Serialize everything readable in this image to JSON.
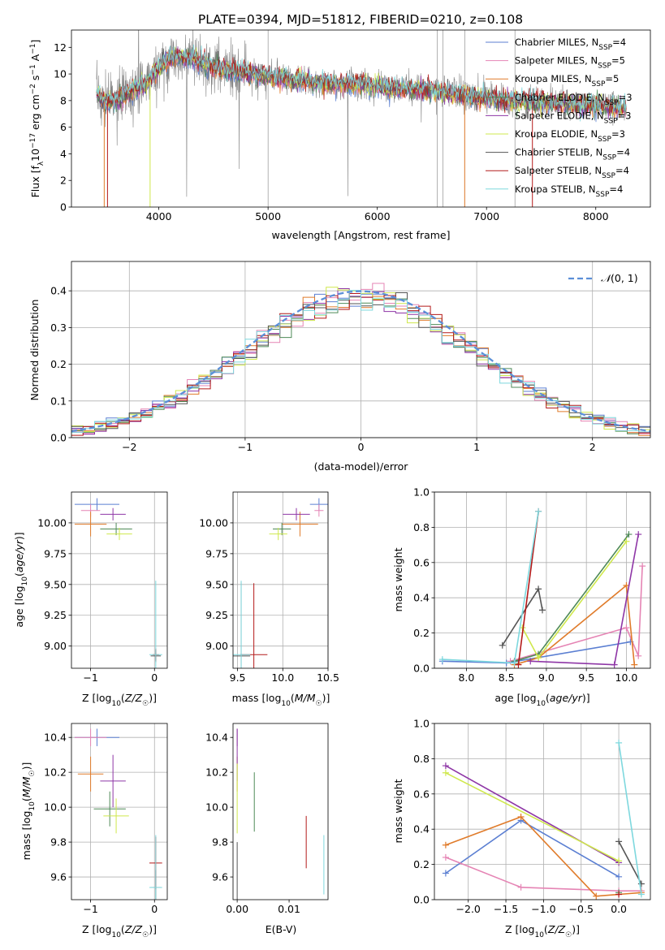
{
  "figure_title": "PLATE=0394, MJD=51812, FIBERID=0210, z=0.108",
  "colors": {
    "Chabrier MILES": "#5b7fd2",
    "Salpeter MILES": "#e584b4",
    "Kroupa MILES": "#e07b2a",
    "Chabrier ELODIE": "#4e8a57",
    "Salpeter ELODIE": "#8e36a6",
    "Kroupa ELODIE": "#cfe84c",
    "Chabrier STELIB": "#555555",
    "Salpeter STELIB": "#b41a1a",
    "Kroupa STELIB": "#7ed8de",
    "data": "#808080"
  },
  "models": [
    "Chabrier MILES",
    "Salpeter MILES",
    "Kroupa MILES",
    "Chabrier ELODIE",
    "Salpeter ELODIE",
    "Kroupa ELODIE",
    "Chabrier STELIB",
    "Salpeter STELIB",
    "Kroupa STELIB"
  ],
  "chart_data": [
    {
      "id": "spectrum",
      "type": "line",
      "title": "PLATE=0394, MJD=51812, FIBERID=0210, z=0.108",
      "xlabel": "wavelength [Angstrom, rest frame]",
      "ylabel": "Flux [f_λ 10^-17 erg cm^-2 s^-1 A^-1]",
      "xlim": [
        3200,
        8500
      ],
      "ylim": [
        0,
        13.3
      ],
      "xticks": [
        4000,
        5000,
        6000,
        7000,
        8000
      ],
      "yticks": [
        0,
        2,
        4,
        6,
        8,
        10,
        12
      ],
      "grid": false,
      "legend_position": "top-right",
      "legend": [
        "Chabrier MILES, N_SSP=4",
        "Salpeter MILES, N_SSP=5",
        "Kroupa MILES, N_SSP=5",
        "Chabrier ELODIE, N_SSP=3",
        "Salpeter ELODIE, N_SSP=3",
        "Kroupa ELODIE, N_SSP=3",
        "Chabrier STELIB, N_SSP=4",
        "Salpeter STELIB, N_SSP=4",
        "Kroupa STELIB, N_SSP=4"
      ],
      "continuum": {
        "x": [
          3430,
          3500,
          3600,
          3700,
          3800,
          3900,
          4000,
          4100,
          4200,
          4300,
          4400,
          4500,
          4700,
          4850,
          5000,
          5200,
          5400,
          5600,
          5800,
          6000,
          6200,
          6400,
          6600,
          6800,
          7000,
          7200,
          7400,
          7600,
          7800,
          8000,
          8280
        ],
        "y": [
          8.5,
          7.9,
          7.9,
          8.5,
          8.9,
          9.4,
          10.4,
          11.2,
          11.3,
          11.1,
          10.8,
          10.5,
          10.2,
          10.0,
          9.8,
          9.6,
          9.4,
          9.3,
          9.2,
          9.0,
          8.9,
          8.8,
          8.6,
          8.4,
          8.2,
          8.0,
          7.9,
          7.8,
          7.7,
          7.6,
          7.5
        ]
      },
      "dips": [
        {
          "model": "Kroupa MILES",
          "x": 3500
        },
        {
          "model": "Salpeter STELIB",
          "x": 3530
        },
        {
          "model": "Kroupa ELODIE",
          "x": 3920
        },
        {
          "model": "Kroupa MILES",
          "x": 6800
        },
        {
          "model": "Salpeter STELIB",
          "x": 7420
        }
      ]
    },
    {
      "id": "residuals",
      "type": "histogram",
      "xlabel": "(data-model)/error",
      "ylabel": "Normed distribution",
      "xlim": [
        -2.5,
        2.5
      ],
      "ylim": [
        0,
        0.48
      ],
      "xticks": [
        -2,
        -1,
        0,
        1,
        2
      ],
      "yticks": [
        0.0,
        0.1,
        0.2,
        0.3,
        0.4
      ],
      "grid": true,
      "legend_position": "top-right",
      "legend": [
        "𝒩(0,1)"
      ],
      "bin_width": 0.1,
      "reference_curve": "standard normal pdf, dashed, color #5b7fd2"
    },
    {
      "id": "age-vs-Z",
      "type": "scatter",
      "xlabel": "Z [log10(Z/Z☉)]",
      "ylabel": "age [log10(age/yr)]",
      "xlim": [
        -1.3,
        0.2
      ],
      "ylim": [
        8.82,
        10.25
      ],
      "xticks": [
        -1,
        0
      ],
      "yticks": [
        9.0,
        9.25,
        9.5,
        9.75,
        10.0
      ],
      "grid": true,
      "points": [
        {
          "model": "Chabrier MILES",
          "x": -0.9,
          "y": 10.15,
          "xerr": 0.35,
          "yerr": 0.05
        },
        {
          "model": "Salpeter MILES",
          "x": -1.0,
          "y": 10.1,
          "xerr": 0.15,
          "yerr": 0.05
        },
        {
          "model": "Kroupa MILES",
          "x": -1.0,
          "y": 9.99,
          "xerr": 0.25,
          "yerr": 0.1
        },
        {
          "model": "Chabrier ELODIE",
          "x": -0.6,
          "y": 9.95,
          "xerr": 0.25,
          "yerr": 0.05
        },
        {
          "model": "Salpeter ELODIE",
          "x": -0.65,
          "y": 10.07,
          "xerr": 0.2,
          "yerr": 0.05
        },
        {
          "model": "Kroupa ELODIE",
          "x": -0.55,
          "y": 9.91,
          "xerr": 0.2,
          "yerr": 0.05
        },
        {
          "model": "Chabrier STELIB",
          "x": 0.02,
          "y": 8.92,
          "xerr": 0.08,
          "yerr": 0.05
        },
        {
          "model": "Salpeter STELIB",
          "x": 0.02,
          "y": 8.93,
          "xerr": 0.05,
          "yerr": 0.05
        },
        {
          "model": "Kroupa STELIB",
          "x": 0.02,
          "y": 8.93,
          "xerr": 0.1,
          "yerr": 0.6
        }
      ]
    },
    {
      "id": "age-vs-mass",
      "type": "scatter",
      "xlabel": "mass [log10(M/M☉)]",
      "ylabel": "",
      "xlim": [
        9.45,
        10.5
      ],
      "ylim": [
        8.82,
        10.25
      ],
      "xticks": [
        9.5,
        10.0,
        10.5
      ],
      "yticks": [
        9.0,
        9.25,
        9.5,
        9.75,
        10.0
      ],
      "grid": true,
      "points": [
        {
          "model": "Chabrier MILES",
          "x": 10.4,
          "y": 10.15,
          "xerr": 0.1,
          "yerr": 0.05
        },
        {
          "model": "Salpeter MILES",
          "x": 10.4,
          "y": 10.1,
          "xerr": 0.05,
          "yerr": 0.05
        },
        {
          "model": "Kroupa MILES",
          "x": 10.19,
          "y": 9.99,
          "xerr": 0.2,
          "yerr": 0.1
        },
        {
          "model": "Chabrier ELODIE",
          "x": 9.99,
          "y": 9.95,
          "xerr": 0.1,
          "yerr": 0.05
        },
        {
          "model": "Salpeter ELODIE",
          "x": 10.15,
          "y": 10.07,
          "xerr": 0.15,
          "yerr": 0.05
        },
        {
          "model": "Kroupa ELODIE",
          "x": 9.95,
          "y": 9.91,
          "xerr": 0.1,
          "yerr": 0.05
        },
        {
          "model": "Chabrier STELIB",
          "x": 9.54,
          "y": 8.92,
          "xerr": 0.1,
          "yerr": 0.6
        },
        {
          "model": "Salpeter STELIB",
          "x": 9.68,
          "y": 8.93,
          "xerr": 0.15,
          "yerr": 0.58
        },
        {
          "model": "Kroupa STELIB",
          "x": 9.54,
          "y": 8.93,
          "xerr": 0.1,
          "yerr": 0.6
        }
      ]
    },
    {
      "id": "weight-vs-age",
      "type": "line",
      "xlabel": "age [log10(age/yr)]",
      "ylabel": "mass weight",
      "xlim": [
        7.6,
        10.3
      ],
      "ylim": [
        0,
        1.0
      ],
      "xticks": [
        8.0,
        8.5,
        9.0,
        9.5,
        10.0
      ],
      "yticks": [
        0.0,
        0.2,
        0.4,
        0.6,
        0.8,
        1.0
      ],
      "grid": true,
      "series": [
        {
          "model": "Chabrier MILES",
          "points": [
            [
              7.7,
              0.04
            ],
            [
              8.5,
              0.03
            ],
            [
              10.05,
              0.15
            ]
          ]
        },
        {
          "model": "Salpeter MILES",
          "points": [
            [
              8.55,
              0.04
            ],
            [
              10.0,
              0.23
            ],
            [
              10.15,
              0.07
            ],
            [
              10.2,
              0.58
            ]
          ]
        },
        {
          "model": "Kroupa MILES",
          "points": [
            [
              8.6,
              0.02
            ],
            [
              8.9,
              0.06
            ],
            [
              10.0,
              0.47
            ],
            [
              10.1,
              0.02
            ]
          ]
        },
        {
          "model": "Chabrier ELODIE",
          "points": [
            [
              8.6,
              0.04
            ],
            [
              8.9,
              0.08
            ],
            [
              10.03,
              0.76
            ]
          ]
        },
        {
          "model": "Salpeter ELODIE",
          "points": [
            [
              8.8,
              0.04
            ],
            [
              9.85,
              0.02
            ],
            [
              10.15,
              0.76
            ]
          ]
        },
        {
          "model": "Kroupa ELODIE",
          "points": [
            [
              8.7,
              0.23
            ],
            [
              8.9,
              0.06
            ],
            [
              10.0,
              0.72
            ]
          ]
        },
        {
          "model": "Chabrier STELIB",
          "points": [
            [
              8.45,
              0.13
            ],
            [
              8.9,
              0.45
            ],
            [
              8.95,
              0.33
            ]
          ]
        },
        {
          "model": "Salpeter STELIB",
          "points": [
            [
              8.65,
              0.02
            ],
            [
              8.9,
              0.89
            ]
          ]
        },
        {
          "model": "Kroupa STELIB",
          "points": [
            [
              7.7,
              0.05
            ],
            [
              8.6,
              0.03
            ],
            [
              8.9,
              0.89
            ]
          ]
        }
      ]
    },
    {
      "id": "mass-vs-Z",
      "type": "scatter",
      "xlabel": "Z [log10(Z/Z☉)]",
      "ylabel": "mass [log10(M/M☉)]",
      "xlim": [
        -1.3,
        0.2
      ],
      "ylim": [
        9.47,
        10.48
      ],
      "xticks": [
        -1,
        0
      ],
      "yticks": [
        9.6,
        9.8,
        10.0,
        10.2,
        10.4
      ],
      "grid": true,
      "points": [
        {
          "model": "Chabrier MILES",
          "x": -0.9,
          "y": 10.4,
          "xerr": 0.35,
          "yerr": 0.05
        },
        {
          "model": "Salpeter MILES",
          "x": -1.0,
          "y": 10.4,
          "xerr": 0.25,
          "yerr": 0.05
        },
        {
          "model": "Kroupa MILES",
          "x": -1.0,
          "y": 10.19,
          "xerr": 0.2,
          "yerr": 0.1
        },
        {
          "model": "Chabrier ELODIE",
          "x": -0.7,
          "y": 9.99,
          "xerr": 0.25,
          "yerr": 0.1
        },
        {
          "model": "Salpeter ELODIE",
          "x": -0.65,
          "y": 10.15,
          "xerr": 0.2,
          "yerr": 0.15
        },
        {
          "model": "Kroupa ELODIE",
          "x": -0.6,
          "y": 9.95,
          "xerr": 0.2,
          "yerr": 0.1
        },
        {
          "model": "Chabrier STELIB",
          "x": 0.02,
          "y": 9.54,
          "xerr": 0.08,
          "yerr": 0.1
        },
        {
          "model": "Salpeter STELIB",
          "x": 0.02,
          "y": 9.68,
          "xerr": 0.1,
          "yerr": 0.15
        },
        {
          "model": "Kroupa STELIB",
          "x": 0.02,
          "y": 9.54,
          "xerr": 0.1,
          "yerr": 0.3
        }
      ]
    },
    {
      "id": "mass-vs-EBV",
      "type": "scatter",
      "xlabel": "E(B-V)",
      "ylabel": "",
      "xlim": [
        -0.0008,
        0.0175
      ],
      "ylim": [
        9.47,
        10.48
      ],
      "xticks": [
        0.0,
        0.01
      ],
      "yticks": [
        9.6,
        9.8,
        10.0,
        10.2,
        10.4
      ],
      "grid": false,
      "points": [
        {
          "model": "Chabrier MILES",
          "x": 0.0,
          "y": 10.4,
          "xerr": 0,
          "yerr": 0.05
        },
        {
          "model": "Salpeter MILES",
          "x": 0.0,
          "y": 10.4,
          "xerr": 0,
          "yerr": 0.05
        },
        {
          "model": "Kroupa MILES",
          "x": 0.0,
          "y": 10.19,
          "xerr": 0,
          "yerr": 0.1
        },
        {
          "model": "Chabrier ELODIE",
          "x": 0.0033,
          "y": 10.03,
          "xerr": 0,
          "yerr": 0.17
        },
        {
          "model": "Salpeter ELODIE",
          "x": 0.0,
          "y": 10.3,
          "xerr": 0,
          "yerr": 0.15
        },
        {
          "model": "Kroupa ELODIE",
          "x": 0.0,
          "y": 10.05,
          "xerr": 0,
          "yerr": 0.2
        },
        {
          "model": "Chabrier STELIB",
          "x": 0.0,
          "y": 9.55,
          "xerr": 0,
          "yerr": 0.25
        },
        {
          "model": "Salpeter STELIB",
          "x": 0.0133,
          "y": 9.8,
          "xerr": 0,
          "yerr": 0.15
        },
        {
          "model": "Kroupa STELIB",
          "x": 0.0167,
          "y": 9.67,
          "xerr": 0,
          "yerr": 0.17
        }
      ]
    },
    {
      "id": "weight-vs-Z",
      "type": "line",
      "xlabel": "Z [log10(Z/Z☉)]",
      "ylabel": "mass weight",
      "xlim": [
        -2.45,
        0.42
      ],
      "ylim": [
        0,
        1.0
      ],
      "xticks": [
        -2.0,
        -1.5,
        -1.0,
        -0.5,
        0.0
      ],
      "yticks": [
        0.0,
        0.2,
        0.4,
        0.6,
        0.8,
        1.0
      ],
      "grid": true,
      "series": [
        {
          "model": "Chabrier MILES",
          "points": [
            [
              -2.3,
              0.15
            ],
            [
              -1.3,
              0.45
            ],
            [
              0.0,
              0.13
            ]
          ]
        },
        {
          "model": "Salpeter MILES",
          "points": [
            [
              -2.3,
              0.24
            ],
            [
              -1.3,
              0.07
            ],
            [
              0.0,
              0.05
            ],
            [
              0.3,
              0.05
            ]
          ]
        },
        {
          "model": "Kroupa MILES",
          "points": [
            [
              -2.3,
              0.31
            ],
            [
              -1.3,
              0.47
            ],
            [
              -0.3,
              0.02
            ],
            [
              0.3,
              0.04
            ]
          ]
        },
        {
          "model": "Chabrier ELODIE",
          "points": [
            [
              0.0,
              0.04
            ]
          ]
        },
        {
          "model": "Salpeter ELODIE",
          "points": [
            [
              -2.3,
              0.76
            ],
            [
              0.0,
              0.21
            ]
          ]
        },
        {
          "model": "Kroupa ELODIE",
          "points": [
            [
              -2.3,
              0.72
            ],
            [
              0.0,
              0.22
            ]
          ]
        },
        {
          "model": "Chabrier STELIB",
          "points": [
            [
              0.0,
              0.33
            ],
            [
              0.3,
              0.09
            ]
          ]
        },
        {
          "model": "Salpeter STELIB",
          "points": [
            [
              0.0,
              0.03
            ]
          ]
        },
        {
          "model": "Kroupa STELIB",
          "points": [
            [
              0.0,
              0.89
            ],
            [
              0.3,
              0.03
            ]
          ]
        }
      ]
    }
  ]
}
